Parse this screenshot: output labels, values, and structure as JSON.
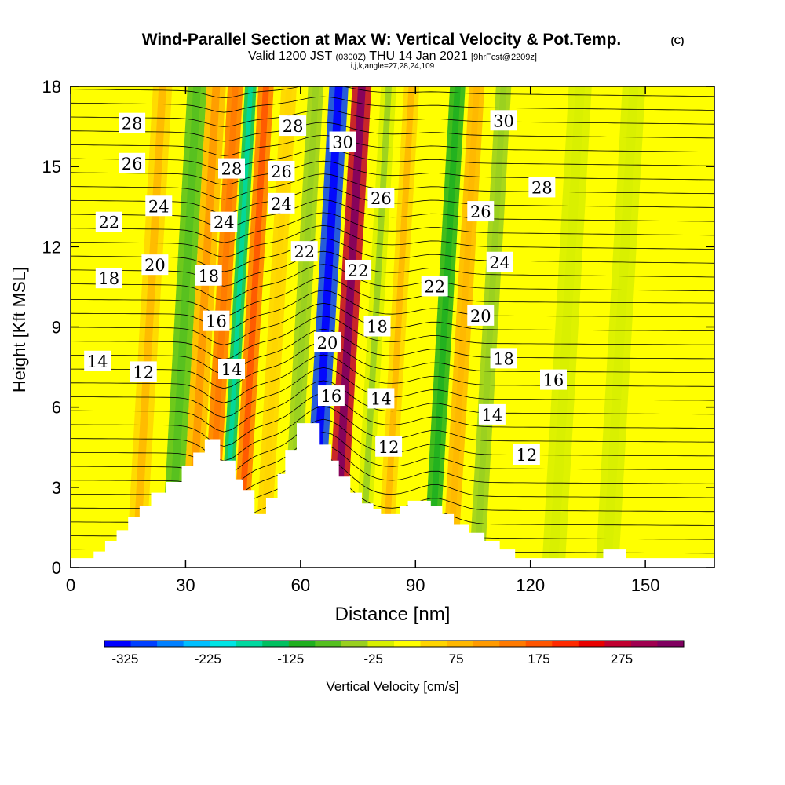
{
  "chart_data": {
    "type": "heatmap",
    "title": "Wind-Parallel Section at Max W: Vertical Velocity & Pot.Temp.",
    "title_mark": "(C)",
    "subtitle": {
      "valid": "Valid 1200 JST",
      "utc": "(0300Z)",
      "date": "THU 14 Jan 2021",
      "fcst": "[9hrFcst@2209z]"
    },
    "ijk_line": "i,j,k,angle=27,28,24,109",
    "xlabel": "Distance [nm]",
    "ylabel": "Height [Kft MSL]",
    "xlim": [
      0,
      168
    ],
    "ylim": [
      0,
      18
    ],
    "x_ticks": [
      "0",
      "30",
      "60",
      "90",
      "120",
      "150"
    ],
    "x_tick_values": [
      0,
      30,
      60,
      90,
      120,
      150
    ],
    "y_ticks": [
      "0",
      "3",
      "6",
      "9",
      "12",
      "15",
      "18"
    ],
    "y_tick_values": [
      0,
      3,
      6,
      9,
      12,
      15,
      18
    ],
    "colorbar": {
      "label": "Vertical Velocity [cm/s]",
      "tick_labels": [
        "-325",
        "-225",
        "-125",
        "-25",
        "75",
        "175",
        "275"
      ],
      "tick_values": [
        -325,
        -225,
        -125,
        -25,
        75,
        175,
        275
      ],
      "range": [
        -350,
        350
      ],
      "colors": [
        "#0000ff",
        "#0040ff",
        "#0080ff",
        "#00bfff",
        "#00e5e5",
        "#00d9a0",
        "#00c060",
        "#20b020",
        "#55c020",
        "#99d020",
        "#d8f000",
        "#ffff00",
        "#ffd500",
        "#ffb800",
        "#ff9a00",
        "#ff7a00",
        "#ff5500",
        "#ff2a00",
        "#e80000",
        "#c00030",
        "#a00050",
        "#800060"
      ]
    },
    "vertical_velocity_bands": [
      {
        "x": 4,
        "value": 20,
        "width": 4
      },
      {
        "x": 17,
        "value": 60,
        "width": 5
      },
      {
        "x": 26,
        "value": -80,
        "width": 5
      },
      {
        "x": 31,
        "value": 90,
        "width": 5
      },
      {
        "x": 36,
        "value": 130,
        "width": 4
      },
      {
        "x": 40,
        "value": -150,
        "width": 3
      },
      {
        "x": 44,
        "value": 140,
        "width": 4
      },
      {
        "x": 50,
        "value": 40,
        "width": 4
      },
      {
        "x": 57,
        "value": -40,
        "width": 4
      },
      {
        "x": 63,
        "value": -300,
        "width": 5
      },
      {
        "x": 69,
        "value": 280,
        "width": 5
      },
      {
        "x": 76,
        "value": -30,
        "width": 4
      },
      {
        "x": 82,
        "value": 60,
        "width": 4
      },
      {
        "x": 94,
        "value": -110,
        "width": 4
      },
      {
        "x": 99,
        "value": 80,
        "width": 4
      },
      {
        "x": 106,
        "value": -50,
        "width": 4
      },
      {
        "x": 126,
        "value": -20,
        "width": 6
      },
      {
        "x": 140,
        "value": -25,
        "width": 6
      }
    ],
    "terrain": [
      {
        "x": 0,
        "h": 0.35
      },
      {
        "x": 6,
        "h": 0.6
      },
      {
        "x": 9,
        "h": 1.0
      },
      {
        "x": 12,
        "h": 1.4
      },
      {
        "x": 15,
        "h": 1.9
      },
      {
        "x": 18,
        "h": 2.3
      },
      {
        "x": 21,
        "h": 2.8
      },
      {
        "x": 25,
        "h": 3.2
      },
      {
        "x": 29,
        "h": 3.8
      },
      {
        "x": 32,
        "h": 4.3
      },
      {
        "x": 35,
        "h": 4.8
      },
      {
        "x": 39,
        "h": 4.0
      },
      {
        "x": 43,
        "h": 3.3
      },
      {
        "x": 45,
        "h": 2.9
      },
      {
        "x": 48,
        "h": 2.0
      },
      {
        "x": 51,
        "h": 2.6
      },
      {
        "x": 54,
        "h": 3.5
      },
      {
        "x": 56,
        "h": 4.4
      },
      {
        "x": 59,
        "h": 5.4
      },
      {
        "x": 63,
        "h": 5.4
      },
      {
        "x": 65,
        "h": 4.6
      },
      {
        "x": 68,
        "h": 4.0
      },
      {
        "x": 70,
        "h": 3.4
      },
      {
        "x": 73,
        "h": 2.8
      },
      {
        "x": 76,
        "h": 2.4
      },
      {
        "x": 79,
        "h": 2.2
      },
      {
        "x": 81,
        "h": 2.0
      },
      {
        "x": 86,
        "h": 2.3
      },
      {
        "x": 88,
        "h": 2.5
      },
      {
        "x": 94,
        "h": 2.3
      },
      {
        "x": 97,
        "h": 2.0
      },
      {
        "x": 100,
        "h": 1.6
      },
      {
        "x": 104,
        "h": 1.3
      },
      {
        "x": 108,
        "h": 1.0
      },
      {
        "x": 112,
        "h": 0.7
      },
      {
        "x": 116,
        "h": 0.35
      },
      {
        "x": 139,
        "h": 0.7
      },
      {
        "x": 145,
        "h": 0.35
      },
      {
        "x": 168,
        "h": 0.35
      }
    ],
    "theta_labels": [
      {
        "text": "28",
        "x": 16,
        "y": 16.6
      },
      {
        "text": "26",
        "x": 16,
        "y": 15.1
      },
      {
        "text": "24",
        "x": 23,
        "y": 13.5
      },
      {
        "text": "22",
        "x": 10,
        "y": 12.9
      },
      {
        "text": "20",
        "x": 22,
        "y": 11.3
      },
      {
        "text": "18",
        "x": 10,
        "y": 10.8
      },
      {
        "text": "14",
        "x": 7,
        "y": 7.7
      },
      {
        "text": "12",
        "x": 19,
        "y": 7.3
      },
      {
        "text": "28",
        "x": 42,
        "y": 14.9
      },
      {
        "text": "24",
        "x": 40,
        "y": 12.9
      },
      {
        "text": "18",
        "x": 36,
        "y": 10.9
      },
      {
        "text": "16",
        "x": 38,
        "y": 9.2
      },
      {
        "text": "14",
        "x": 42,
        "y": 7.4
      },
      {
        "text": "26",
        "x": 55,
        "y": 14.8
      },
      {
        "text": "24",
        "x": 55,
        "y": 13.6
      },
      {
        "text": "28",
        "x": 58,
        "y": 16.5
      },
      {
        "text": "22",
        "x": 61,
        "y": 11.8
      },
      {
        "text": "20",
        "x": 67,
        "y": 8.4
      },
      {
        "text": "16",
        "x": 68,
        "y": 6.4
      },
      {
        "text": "30",
        "x": 71,
        "y": 15.9
      },
      {
        "text": "26",
        "x": 81,
        "y": 13.8
      },
      {
        "text": "22",
        "x": 75,
        "y": 11.1
      },
      {
        "text": "18",
        "x": 80,
        "y": 9.0
      },
      {
        "text": "14",
        "x": 81,
        "y": 6.3
      },
      {
        "text": "12",
        "x": 83,
        "y": 4.5
      },
      {
        "text": "22",
        "x": 95,
        "y": 10.5
      },
      {
        "text": "30",
        "x": 113,
        "y": 16.7
      },
      {
        "text": "28",
        "x": 123,
        "y": 14.2
      },
      {
        "text": "26",
        "x": 107,
        "y": 13.3
      },
      {
        "text": "24",
        "x": 112,
        "y": 11.4
      },
      {
        "text": "20",
        "x": 107,
        "y": 9.4
      },
      {
        "text": "18",
        "x": 113,
        "y": 7.8
      },
      {
        "text": "16",
        "x": 126,
        "y": 7.0
      },
      {
        "text": "14",
        "x": 110,
        "y": 5.7
      },
      {
        "text": "12",
        "x": 119,
        "y": 4.2
      }
    ]
  }
}
